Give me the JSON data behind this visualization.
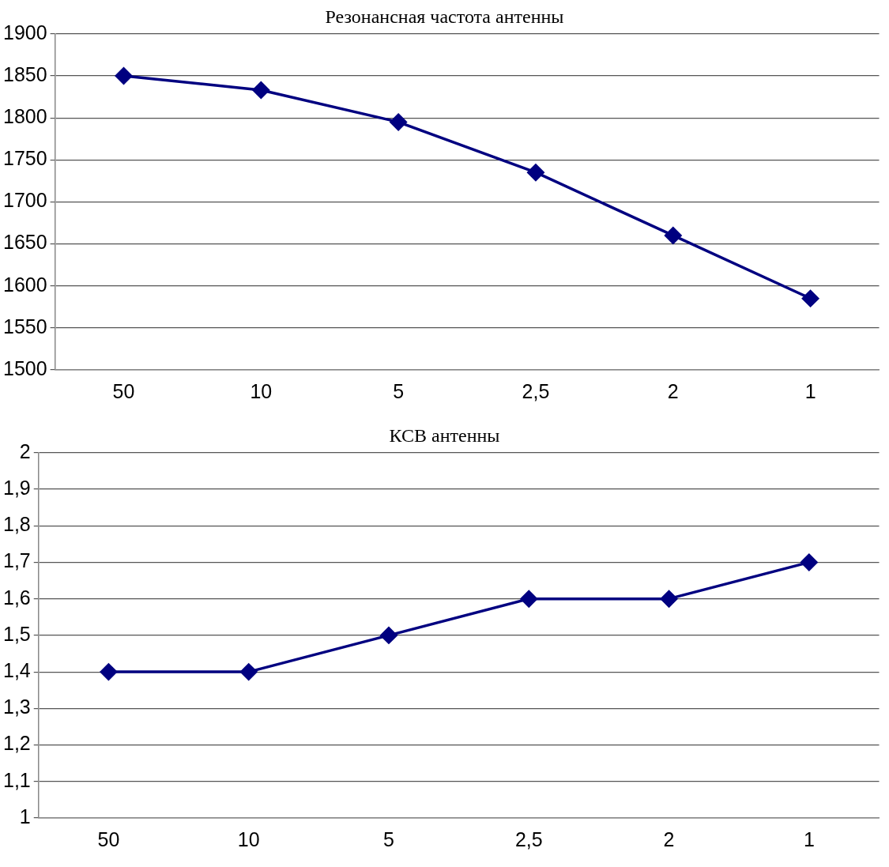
{
  "chart_data": [
    {
      "type": "line",
      "title": "Резонансная частота антенны",
      "categories": [
        "50",
        "10",
        "5",
        "2,5",
        "2",
        "1"
      ],
      "series": [
        {
          "color": "#000080",
          "values": [
            1850,
            1833,
            1795,
            1735,
            1660,
            1585
          ]
        }
      ],
      "ylim": [
        1500,
        1900
      ],
      "yticks": [
        1500,
        1550,
        1600,
        1650,
        1700,
        1750,
        1800,
        1850,
        1900
      ],
      "grid": "y",
      "legend": false,
      "marker": "diamond",
      "line_style": "solid"
    },
    {
      "type": "line",
      "title": "КСВ антенны",
      "categories": [
        "50",
        "10",
        "5",
        "2,5",
        "2",
        "1"
      ],
      "series": [
        {
          "color": "#000080",
          "values": [
            1.4,
            1.4,
            1.5,
            1.6,
            1.6,
            1.7
          ]
        }
      ],
      "ylim": [
        1,
        2
      ],
      "yticks": [
        1,
        {
          "value": 1.1,
          "label": "1,1"
        },
        {
          "value": 1.2,
          "label": "1,2"
        },
        {
          "value": 1.3,
          "label": "1,3"
        },
        {
          "value": 1.4,
          "label": "1,4"
        },
        {
          "value": 1.5,
          "label": "1,5"
        },
        {
          "value": 1.6,
          "label": "1,6"
        },
        {
          "value": 1.7,
          "label": "1,7"
        },
        {
          "value": 1.8,
          "label": "1,8"
        },
        {
          "value": 1.9,
          "label": "1,9"
        },
        2
      ],
      "grid": "y",
      "legend": false,
      "marker": "diamond",
      "line_style": "solid"
    }
  ]
}
